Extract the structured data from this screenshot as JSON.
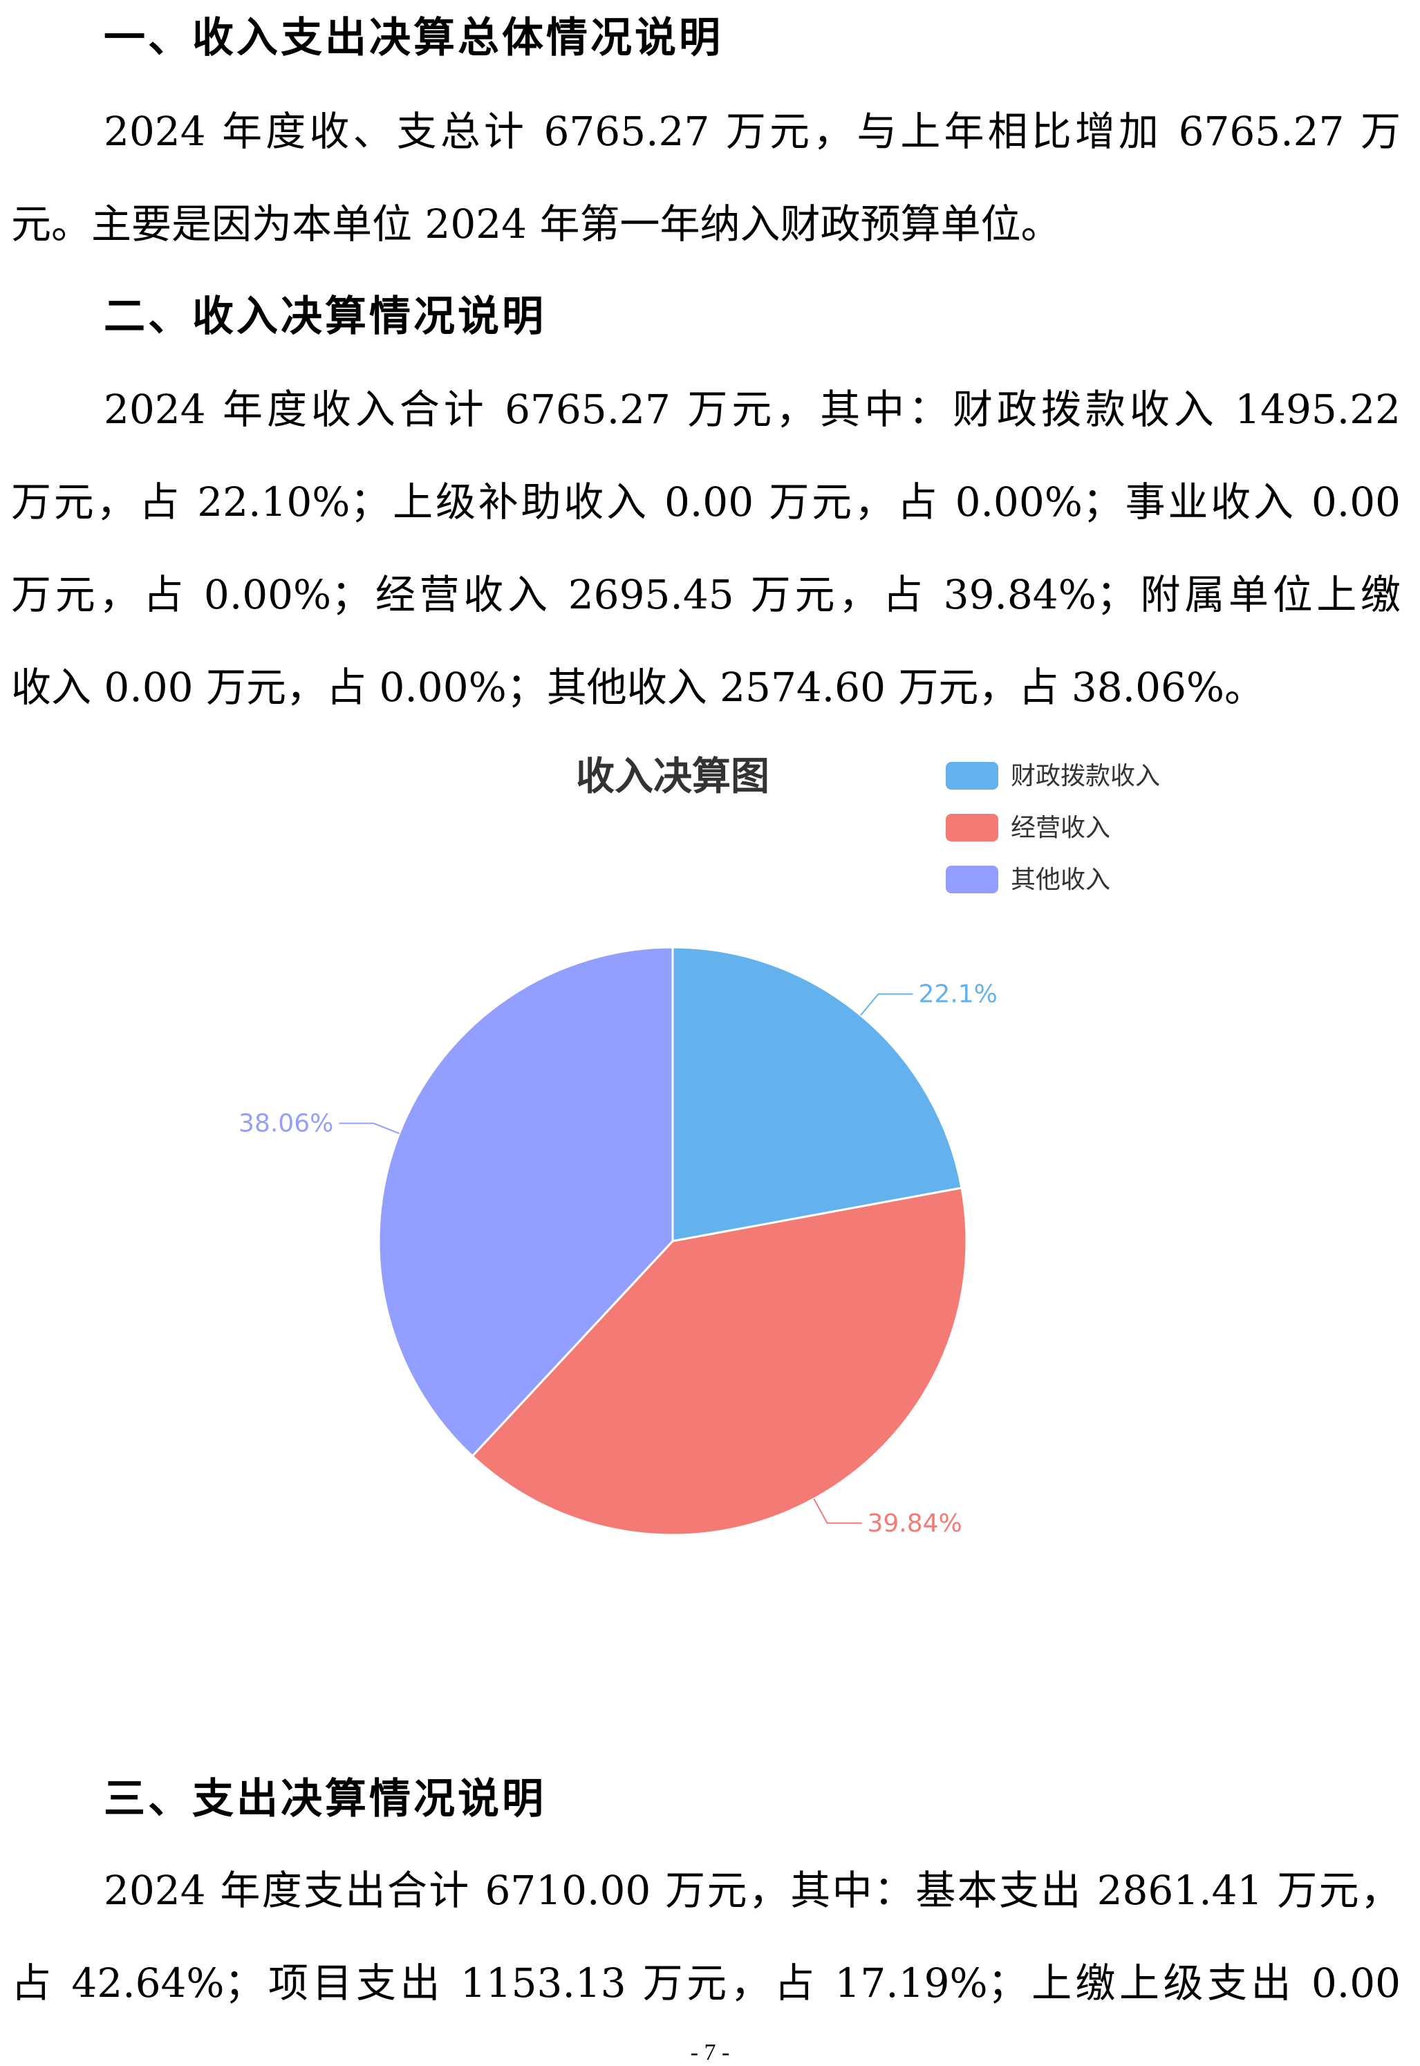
{
  "section1": {
    "heading": "一、收入支出决算总体情况说明",
    "lines": [
      "2024 年度收、支总计 6765.27 万元，与上年相比增加 6765.27 万",
      "元。主要是因为本单位 2024 年第一年纳入财政预算单位。"
    ]
  },
  "section2": {
    "heading": "二、收入决算情况说明",
    "lines": [
      "2024 年度收入合计 6765.27 万元，其中：财政拨款收入 1495.22",
      "万元，占 22.10%；上级补助收入 0.00 万元，占 0.00%；事业收入 0.00",
      "万元，占 0.00%；经营收入 2695.45 万元，占 39.84%；附属单位上缴",
      "收入 0.00 万元，占 0.00%；其他收入 2574.60 万元，占 38.06%。"
    ]
  },
  "chart_data": {
    "type": "pie",
    "title": "收入决算图",
    "legend_position": "top-right",
    "series": [
      {
        "name": "财政拨款收入",
        "value": 22.1,
        "label": "22.1%",
        "color": "#63b2ee"
      },
      {
        "name": "经营收入",
        "value": 39.84,
        "label": "39.84%",
        "color": "#f47a75"
      },
      {
        "name": "其他收入",
        "value": 38.06,
        "label": "38.06%",
        "color": "#929fff"
      }
    ]
  },
  "section3": {
    "heading": "三、支出决算情况说明",
    "lines": [
      "2024 年度支出合计 6710.00 万元，其中：基本支出 2861.41 万元，",
      "占 42.64%；项目支出 1153.13 万元，占 17.19%；上缴上级支出 0.00"
    ]
  },
  "page_number": "- 7 -"
}
